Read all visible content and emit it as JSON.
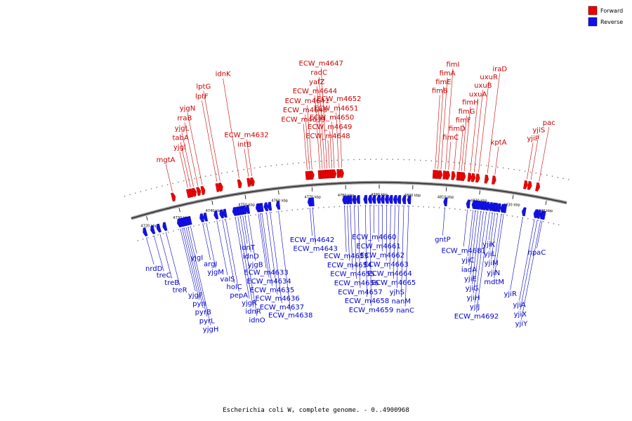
{
  "legend": [
    {
      "label": "Forward",
      "color": "#ee0000"
    },
    {
      "label": "Reverse",
      "color": "#1111ee"
    }
  ],
  "caption": "Escherichia coli W, complete genome. - 0..4900968",
  "ticks": [
    {
      "kbp": 4720,
      "label": "4720 kbp"
    },
    {
      "kbp": 4730,
      "label": "4730 kbp"
    },
    {
      "kbp": 4740,
      "label": "4740 kbp"
    },
    {
      "kbp": 4750,
      "label": "4750 kbp"
    },
    {
      "kbp": 4760,
      "label": "4760 kbp"
    },
    {
      "kbp": 4770,
      "label": "4770 kbp"
    },
    {
      "kbp": 4780,
      "label": "4780 kbp"
    },
    {
      "kbp": 4790,
      "label": "4790 kbp"
    },
    {
      "kbp": 4800,
      "label": "4800 kbp"
    },
    {
      "kbp": 4810,
      "label": "4810 kbp"
    },
    {
      "kbp": 4820,
      "label": "4820 kbp"
    },
    {
      "kbp": 4830,
      "label": "4830 kbp"
    },
    {
      "kbp": 4840,
      "label": "4840 kbp"
    }
  ],
  "forward_genes": [
    {
      "name": "mgtA",
      "kbp": 4729.2
    },
    {
      "name": "yjgI",
      "kbp": 4733.8
    },
    {
      "name": "tabA",
      "kbp": 4734.6
    },
    {
      "name": "yjgL",
      "kbp": 4735.5
    },
    {
      "name": "rraB",
      "kbp": 4736.8
    },
    {
      "name": "yjgN",
      "kbp": 4738.1
    },
    {
      "name": "lptF",
      "kbp": 4742.5
    },
    {
      "name": "lptG",
      "kbp": 4743.4
    },
    {
      "name": "idnK",
      "kbp": 4749.0
    },
    {
      "name": "intB",
      "kbp": 4751.8
    },
    {
      "name": "ECW_m4632",
      "kbp": 4752.8
    },
    {
      "name": "ECW_m4639",
      "kbp": 4769.0
    },
    {
      "name": "ECW_m4640",
      "kbp": 4769.7
    },
    {
      "name": "ECW_m4641",
      "kbp": 4770.4
    },
    {
      "name": "ECW_m4644",
      "kbp": 4772.7
    },
    {
      "name": "yafZ",
      "kbp": 4773.4
    },
    {
      "name": "radC",
      "kbp": 4774.1
    },
    {
      "name": "ECW_m4647",
      "kbp": 4774.8
    },
    {
      "name": "ECW_m4648",
      "kbp": 4775.5
    },
    {
      "name": "ECW_m4649",
      "kbp": 4776.2
    },
    {
      "name": "ECW_m4650",
      "kbp": 4776.9
    },
    {
      "name": "ECW_m4651",
      "kbp": 4778.2
    },
    {
      "name": "ECW_m4652",
      "kbp": 4779.1
    },
    {
      "name": "fimB",
      "kbp": 4806.3
    },
    {
      "name": "fimE",
      "kbp": 4807.1
    },
    {
      "name": "fimA",
      "kbp": 4808.0
    },
    {
      "name": "fimI",
      "kbp": 4809.3
    },
    {
      "name": "fimC",
      "kbp": 4810.2
    },
    {
      "name": "fimD",
      "kbp": 4811.8
    },
    {
      "name": "fimF",
      "kbp": 4813.3
    },
    {
      "name": "fimG",
      "kbp": 4814.0
    },
    {
      "name": "fimH",
      "kbp": 4814.8
    },
    {
      "name": "uxuA",
      "kbp": 4816.6
    },
    {
      "name": "uxuB",
      "kbp": 4817.7
    },
    {
      "name": "uxuR",
      "kbp": 4819.0
    },
    {
      "name": "iraD",
      "kbp": 4821.6
    },
    {
      "name": "kptA",
      "kbp": 4823.8
    },
    {
      "name": "yjiP",
      "kbp": 4833.2
    },
    {
      "name": "yjiS",
      "kbp": 4834.4
    },
    {
      "name": "pac",
      "kbp": 4836.8
    }
  ],
  "reverse_genes": [
    {
      "name": "nrdD",
      "kbp": 4718.2
    },
    {
      "name": "treC",
      "kbp": 4720.6
    },
    {
      "name": "treB",
      "kbp": 4722.5
    },
    {
      "name": "treR",
      "kbp": 4724.4
    },
    {
      "name": "yjgF",
      "kbp": 4728.9
    },
    {
      "name": "pyrI",
      "kbp": 4729.5
    },
    {
      "name": "pyrB",
      "kbp": 4730.1
    },
    {
      "name": "pyrL",
      "kbp": 4730.7
    },
    {
      "name": "yjgH",
      "kbp": 4731.3
    },
    {
      "name": "yjgI",
      "kbp": 4732.1
    },
    {
      "name": "argI",
      "kbp": 4735.9
    },
    {
      "name": "yjgM",
      "kbp": 4737.0
    },
    {
      "name": "valS",
      "kbp": 4740.3
    },
    {
      "name": "holC",
      "kbp": 4742.0
    },
    {
      "name": "pepA",
      "kbp": 4743.0
    },
    {
      "name": "yjgR",
      "kbp": 4746.0
    },
    {
      "name": "idnR",
      "kbp": 4746.8
    },
    {
      "name": "idnO",
      "kbp": 4747.6
    },
    {
      "name": "idnT",
      "kbp": 4748.3
    },
    {
      "name": "idnD",
      "kbp": 4749.0
    },
    {
      "name": "yjgB",
      "kbp": 4750.0
    },
    {
      "name": "ECW_m4633",
      "kbp": 4753.1
    },
    {
      "name": "ECW_m4634",
      "kbp": 4753.6
    },
    {
      "name": "ECW_m4635",
      "kbp": 4754.2
    },
    {
      "name": "ECW_m4636",
      "kbp": 4755.6
    },
    {
      "name": "ECW_m4637",
      "kbp": 4756.7
    },
    {
      "name": "ECW_m4638",
      "kbp": 4759.3
    },
    {
      "name": "ECW_m4642",
      "kbp": 4768.9
    },
    {
      "name": "ECW_m4643",
      "kbp": 4769.7
    },
    {
      "name": "ECW_m4653",
      "kbp": 4779.4
    },
    {
      "name": "ECW_m4654",
      "kbp": 4780.3
    },
    {
      "name": "ECW_m4655",
      "kbp": 4781.2
    },
    {
      "name": "ECW_m4656",
      "kbp": 4782.4
    },
    {
      "name": "ECW_m4657",
      "kbp": 4783.6
    },
    {
      "name": "ECW_m4658",
      "kbp": 4785.8
    },
    {
      "name": "ECW_m4659",
      "kbp": 4787.2
    },
    {
      "name": "ECW_m4660",
      "kbp": 4788.4
    },
    {
      "name": "ECW_m4661",
      "kbp": 4789.8
    },
    {
      "name": "ECW_m4662",
      "kbp": 4791.0
    },
    {
      "name": "ECW_m4663",
      "kbp": 4792.3
    },
    {
      "name": "ECW_m4664",
      "kbp": 4793.5
    },
    {
      "name": "ECW_m4665",
      "kbp": 4794.8
    },
    {
      "name": "yjhS",
      "kbp": 4796.0
    },
    {
      "name": "nanM",
      "kbp": 4797.5
    },
    {
      "name": "nanC",
      "kbp": 4799.0
    },
    {
      "name": "gntP",
      "kbp": 4810.0
    },
    {
      "name": "ECW_m4681",
      "kbp": 4816.9
    },
    {
      "name": "yjiC",
      "kbp": 4818.6
    },
    {
      "name": "iadA",
      "kbp": 4819.3
    },
    {
      "name": "yjiE",
      "kbp": 4820.1
    },
    {
      "name": "yjiG",
      "kbp": 4821.0
    },
    {
      "name": "yjiH",
      "kbp": 4821.8
    },
    {
      "name": "yjiJ",
      "kbp": 4822.7
    },
    {
      "name": "ECW_m4692",
      "kbp": 4823.7
    },
    {
      "name": "yjiK",
      "kbp": 4824.6
    },
    {
      "name": "yjiL",
      "kbp": 4825.3
    },
    {
      "name": "yjiM",
      "kbp": 4826.2
    },
    {
      "name": "yjiN",
      "kbp": 4827.3
    },
    {
      "name": "mdtM",
      "kbp": 4828.0
    },
    {
      "name": "yjiR",
      "kbp": 4833.9
    },
    {
      "name": "yjiA",
      "kbp": 4837.5
    },
    {
      "name": "yjiX",
      "kbp": 4838.4
    },
    {
      "name": "yjiY",
      "kbp": 4839.4
    },
    {
      "name": "hpaC",
      "kbp": 4839.9
    }
  ]
}
